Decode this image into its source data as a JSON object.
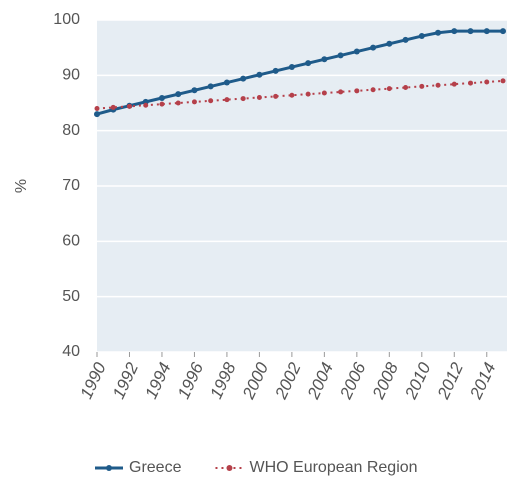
{
  "chart_data": {
    "type": "line",
    "ylabel": "%",
    "x": [
      1990,
      1991,
      1992,
      1993,
      1994,
      1995,
      1996,
      1997,
      1998,
      1999,
      2000,
      2001,
      2002,
      2003,
      2004,
      2005,
      2006,
      2007,
      2008,
      2009,
      2010,
      2011,
      2012,
      2013,
      2014,
      2015
    ],
    "xlim": [
      1990,
      2015
    ],
    "xticks": [
      1990,
      1992,
      1994,
      1996,
      1998,
      2000,
      2002,
      2004,
      2006,
      2008,
      2010,
      2012,
      2014
    ],
    "ylim": [
      40,
      100
    ],
    "yticks": [
      40,
      50,
      60,
      70,
      80,
      90,
      100
    ],
    "grid": true,
    "legend": "bottom",
    "series": [
      {
        "name": "Greece",
        "color": "#1f5b8a",
        "style": "solid",
        "values": [
          83,
          83.8,
          84.5,
          85.2,
          85.9,
          86.6,
          87.3,
          88.0,
          88.7,
          89.4,
          90.1,
          90.8,
          91.5,
          92.2,
          92.9,
          93.6,
          94.3,
          95.0,
          95.7,
          96.4,
          97.1,
          97.7,
          98,
          98,
          98,
          98
        ]
      },
      {
        "name": "WHO European Region",
        "color": "#b5404a",
        "style": "dotted",
        "values": [
          84.0,
          84.2,
          84.4,
          84.6,
          84.8,
          85.0,
          85.2,
          85.4,
          85.6,
          85.8,
          86.0,
          86.2,
          86.4,
          86.6,
          86.8,
          87.0,
          87.2,
          87.4,
          87.6,
          87.8,
          88.0,
          88.2,
          88.4,
          88.6,
          88.8,
          89.0
        ]
      }
    ]
  }
}
